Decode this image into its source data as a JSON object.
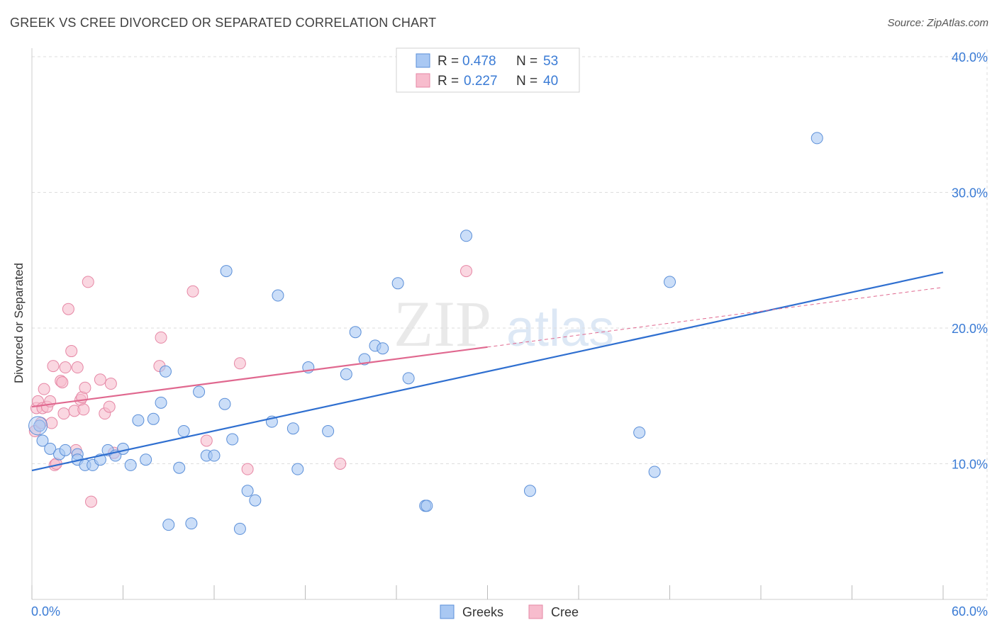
{
  "title": "GREEK VS CREE DIVORCED OR SEPARATED CORRELATION CHART",
  "source": "Source: ZipAtlas.com",
  "watermark": "ZIPatlas",
  "colors": {
    "greeks_fill": "#a9c8f3",
    "greeks_stroke": "#5b8fd8",
    "greeks_line": "#2f6fd0",
    "cree_fill": "#f7bccd",
    "cree_stroke": "#e687a5",
    "cree_line": "#e0688f",
    "value_text": "#3a7bd5"
  },
  "legend": {
    "rows": [
      {
        "r_label": "R =",
        "r_value": "0.478",
        "n_label": "N =",
        "n_value": "53"
      },
      {
        "r_label": "R =",
        "r_value": "0.227",
        "n_label": "N =",
        "n_value": "40"
      }
    ]
  },
  "chart_data": {
    "type": "scatter",
    "title": "GREEK VS CREE DIVORCED OR SEPARATED CORRELATION CHART",
    "xlabel": "",
    "ylabel": "Divorced or Separated",
    "xlim": [
      0,
      60
    ],
    "ylim": [
      0,
      40
    ],
    "x_tick_labels": [
      "0.0%",
      "60.0%"
    ],
    "y_tick_values": [
      10,
      20,
      30,
      40
    ],
    "y_tick_labels": [
      "10.0%",
      "20.0%",
      "30.0%",
      "40.0%"
    ],
    "grid": true,
    "legend_position": "bottom-center",
    "series": [
      {
        "name": "Greeks",
        "r": 0.478,
        "n": 53,
        "trend": {
          "x0": 0,
          "y0": 9.5,
          "x1": 60,
          "y1": 24.1,
          "dashed_from": null
        },
        "points": [
          [
            0.5,
            12.8
          ],
          [
            0.7,
            11.7
          ],
          [
            1.2,
            11.1
          ],
          [
            1.8,
            10.7
          ],
          [
            2.2,
            11.0
          ],
          [
            3.0,
            10.7
          ],
          [
            3.0,
            10.3
          ],
          [
            3.5,
            9.9
          ],
          [
            4.0,
            9.9
          ],
          [
            4.5,
            10.3
          ],
          [
            5.0,
            11.0
          ],
          [
            5.5,
            10.6
          ],
          [
            6.0,
            11.1
          ],
          [
            6.5,
            9.9
          ],
          [
            7.0,
            13.2
          ],
          [
            7.5,
            10.3
          ],
          [
            8.0,
            13.3
          ],
          [
            8.5,
            14.5
          ],
          [
            8.8,
            16.8
          ],
          [
            9.0,
            5.5
          ],
          [
            9.7,
            9.7
          ],
          [
            10.0,
            12.4
          ],
          [
            10.5,
            5.6
          ],
          [
            11.0,
            15.3
          ],
          [
            11.5,
            10.6
          ],
          [
            12.0,
            10.6
          ],
          [
            12.7,
            14.4
          ],
          [
            12.8,
            24.2
          ],
          [
            13.2,
            11.8
          ],
          [
            13.7,
            5.2
          ],
          [
            14.2,
            8.0
          ],
          [
            14.7,
            7.3
          ],
          [
            15.8,
            13.1
          ],
          [
            16.2,
            22.4
          ],
          [
            17.2,
            12.6
          ],
          [
            17.5,
            9.6
          ],
          [
            18.2,
            17.1
          ],
          [
            19.5,
            12.4
          ],
          [
            20.7,
            16.6
          ],
          [
            21.3,
            19.7
          ],
          [
            21.9,
            17.7
          ],
          [
            22.6,
            18.7
          ],
          [
            23.1,
            18.5
          ],
          [
            24.1,
            23.3
          ],
          [
            24.8,
            16.3
          ],
          [
            25.9,
            6.9
          ],
          [
            26.0,
            6.9
          ],
          [
            28.6,
            26.8
          ],
          [
            32.8,
            8.0
          ],
          [
            40.0,
            12.3
          ],
          [
            41.0,
            9.4
          ],
          [
            42.0,
            23.4
          ],
          [
            51.7,
            34.0
          ]
        ]
      },
      {
        "name": "Cree",
        "r": 0.227,
        "n": 40,
        "trend": {
          "x0": 0,
          "y0": 14.2,
          "x1": 60,
          "y1": 23.0,
          "dashed_from": 30
        },
        "points": [
          [
            0.2,
            12.4
          ],
          [
            0.3,
            14.1
          ],
          [
            0.4,
            14.6
          ],
          [
            0.6,
            13.0
          ],
          [
            0.7,
            14.1
          ],
          [
            0.8,
            15.5
          ],
          [
            1.0,
            14.2
          ],
          [
            1.2,
            14.6
          ],
          [
            1.3,
            13.0
          ],
          [
            1.4,
            17.2
          ],
          [
            1.5,
            9.9
          ],
          [
            1.6,
            10.0
          ],
          [
            1.9,
            16.1
          ],
          [
            2.0,
            16.0
          ],
          [
            2.1,
            13.7
          ],
          [
            2.2,
            17.1
          ],
          [
            2.4,
            21.4
          ],
          [
            2.6,
            18.3
          ],
          [
            2.8,
            13.9
          ],
          [
            2.9,
            11.0
          ],
          [
            3.0,
            17.1
          ],
          [
            3.2,
            14.7
          ],
          [
            3.3,
            14.9
          ],
          [
            3.4,
            14.0
          ],
          [
            3.5,
            15.6
          ],
          [
            3.7,
            23.4
          ],
          [
            3.9,
            7.2
          ],
          [
            4.5,
            16.2
          ],
          [
            4.8,
            13.7
          ],
          [
            5.1,
            14.2
          ],
          [
            5.2,
            15.9
          ],
          [
            5.4,
            10.8
          ],
          [
            8.4,
            17.2
          ],
          [
            8.5,
            19.3
          ],
          [
            10.6,
            22.7
          ],
          [
            11.5,
            11.7
          ],
          [
            13.7,
            17.4
          ],
          [
            14.2,
            9.6
          ],
          [
            20.3,
            10.0
          ],
          [
            28.6,
            24.2
          ]
        ]
      }
    ]
  },
  "bottom_legend": [
    "Greeks",
    "Cree"
  ]
}
